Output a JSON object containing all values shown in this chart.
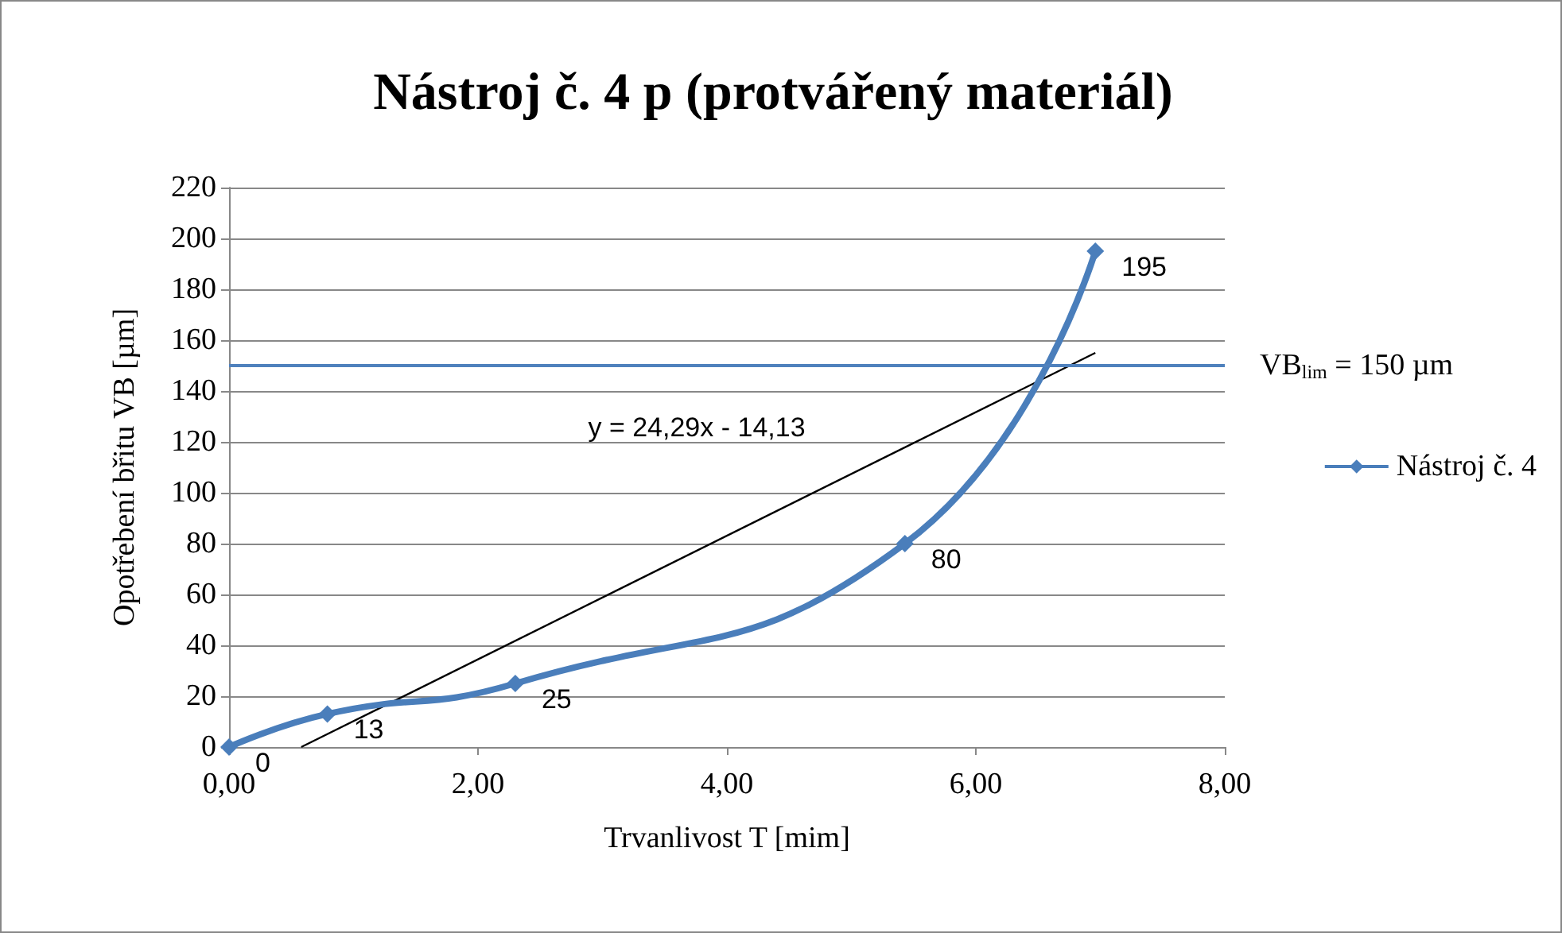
{
  "chart_data": {
    "type": "line",
    "title": "Nástroj č. 4 p (protvářený materiál)",
    "xlabel": "Trvanlivost T [mim]",
    "ylabel": "Opotřebení břitu VB [µm]",
    "x": [
      0,
      0.79,
      2.3,
      5.43,
      6.96
    ],
    "series": [
      {
        "name": "Nástroj č. 4",
        "color": "#4a7ebb",
        "values": [
          0,
          13,
          25,
          80,
          195
        ],
        "marker": "diamond",
        "data_labels": true
      },
      {
        "color": "#000000",
        "x": [
          0.58,
          6.96
        ],
        "values": [
          0,
          155
        ],
        "marker": "none"
      }
    ],
    "xlim": [
      0,
      8
    ],
    "xticks": [
      {
        "value": 0,
        "label": "0,00"
      },
      {
        "value": 2,
        "label": "2,00"
      },
      {
        "value": 4,
        "label": "4,00"
      },
      {
        "value": 6,
        "label": "6,00"
      },
      {
        "value": 8,
        "label": "8,00"
      }
    ],
    "ylim": [
      0,
      220
    ],
    "yticks": [
      0,
      20,
      40,
      60,
      80,
      100,
      120,
      140,
      160,
      180,
      200,
      220
    ],
    "ref_lines": [
      {
        "axis": "y",
        "value": 150,
        "label": "VB$_{lim}$ = 150 µm",
        "color": "#4f81bd"
      }
    ],
    "annotations": [
      "y = 24,29x - 14,13"
    ],
    "grid": "y",
    "legend": "right"
  }
}
